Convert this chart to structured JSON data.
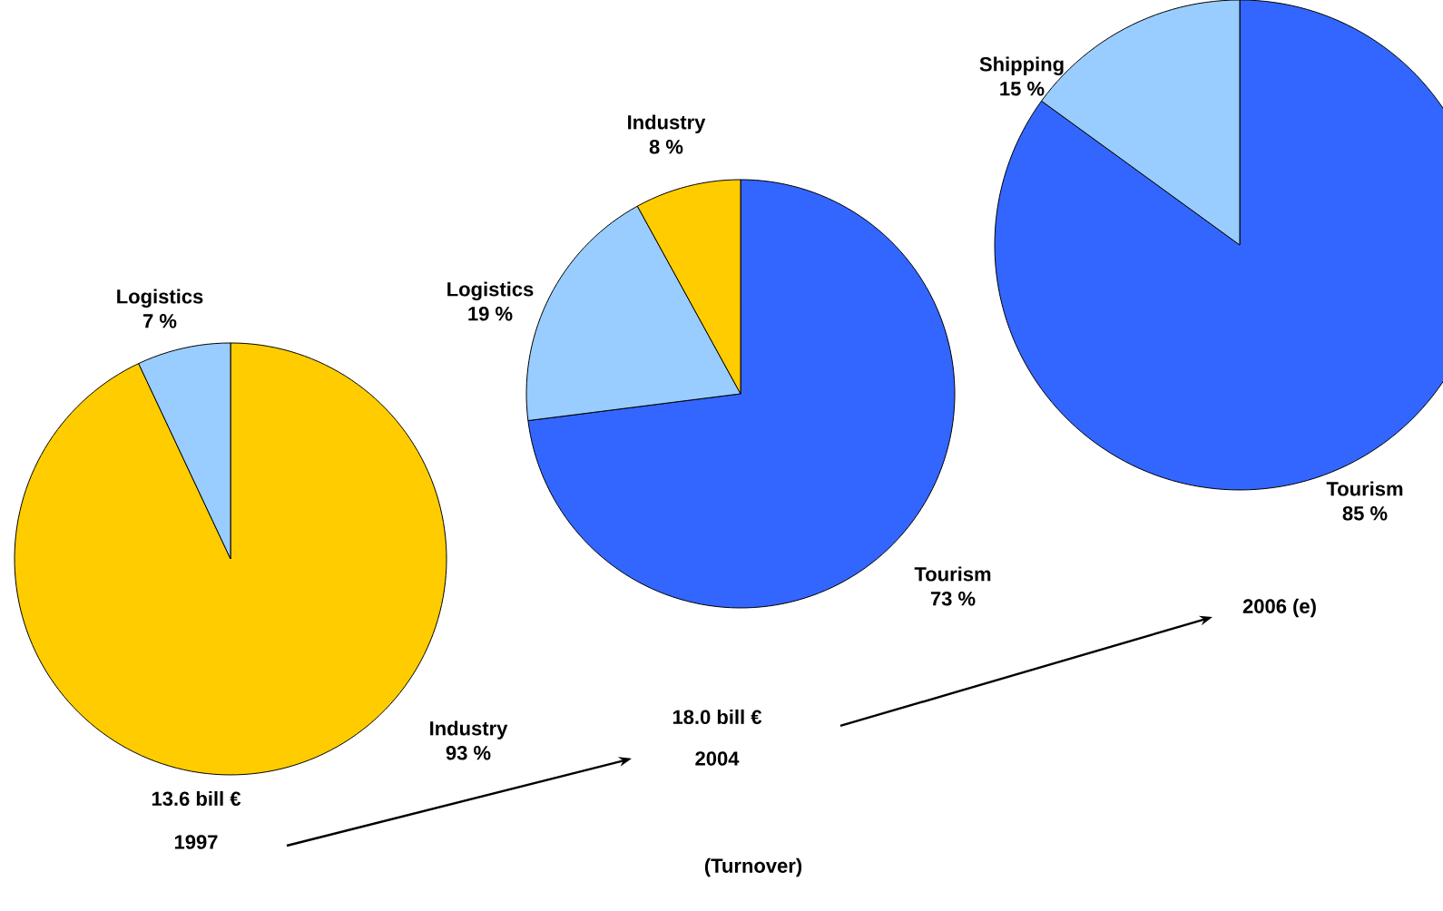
{
  "chart_data": [
    {
      "type": "pie",
      "title": "1997",
      "subtitle": "13.6 bill €",
      "categories": [
        "Industry",
        "Logistics"
      ],
      "values": [
        93,
        7
      ],
      "colors": [
        "#ffcc00",
        "#99ccff"
      ],
      "value_labels": [
        "93 %",
        "7 %"
      ]
    },
    {
      "type": "pie",
      "title": "2004",
      "subtitle": "18.0  bill €",
      "categories": [
        "Tourism",
        "Logistics",
        "Industry"
      ],
      "values": [
        73,
        19,
        8
      ],
      "colors": [
        "#3366ff",
        "#99ccff",
        "#ffcc00"
      ],
      "value_labels": [
        "73 %",
        "19 %",
        "8 %"
      ],
      "annotations": [
        "(Turnover)"
      ]
    },
    {
      "type": "pie",
      "title": "2006 (e)",
      "categories": [
        "Tourism",
        "Shipping"
      ],
      "values": [
        85,
        15
      ],
      "colors": [
        "#3366ff",
        "#99ccff"
      ],
      "value_labels": [
        "85 %",
        "15 %"
      ]
    }
  ]
}
